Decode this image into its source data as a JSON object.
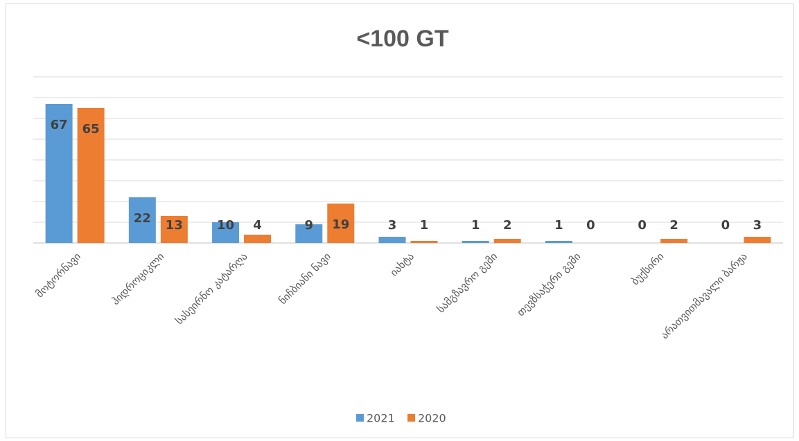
{
  "chart_data": {
    "type": "bar",
    "title": "<100 GT",
    "categories": [
      "მოტორნავი",
      "ჰიდროციკლი",
      "სასეირნო კატარღა",
      "ნიჩბიანი ნავი",
      "იახტა",
      "სამგზავრო გემი",
      "თევზსაჭერი გემი",
      "ბუქსირი",
      "არათვითმავალი ბარჟა"
    ],
    "series": [
      {
        "name": "2021",
        "color": "#5b9bd5",
        "values": [
          67,
          22,
          10,
          9,
          3,
          1,
          1,
          0,
          0
        ]
      },
      {
        "name": "2020",
        "color": "#ed7d31",
        "values": [
          65,
          13,
          4,
          19,
          1,
          2,
          0,
          2,
          3
        ]
      }
    ],
    "ylim": [
      0,
      80
    ],
    "yticks": [
      0,
      10,
      20,
      30,
      40,
      50,
      60,
      70,
      80
    ],
    "grid": true,
    "legend": "bottom"
  }
}
